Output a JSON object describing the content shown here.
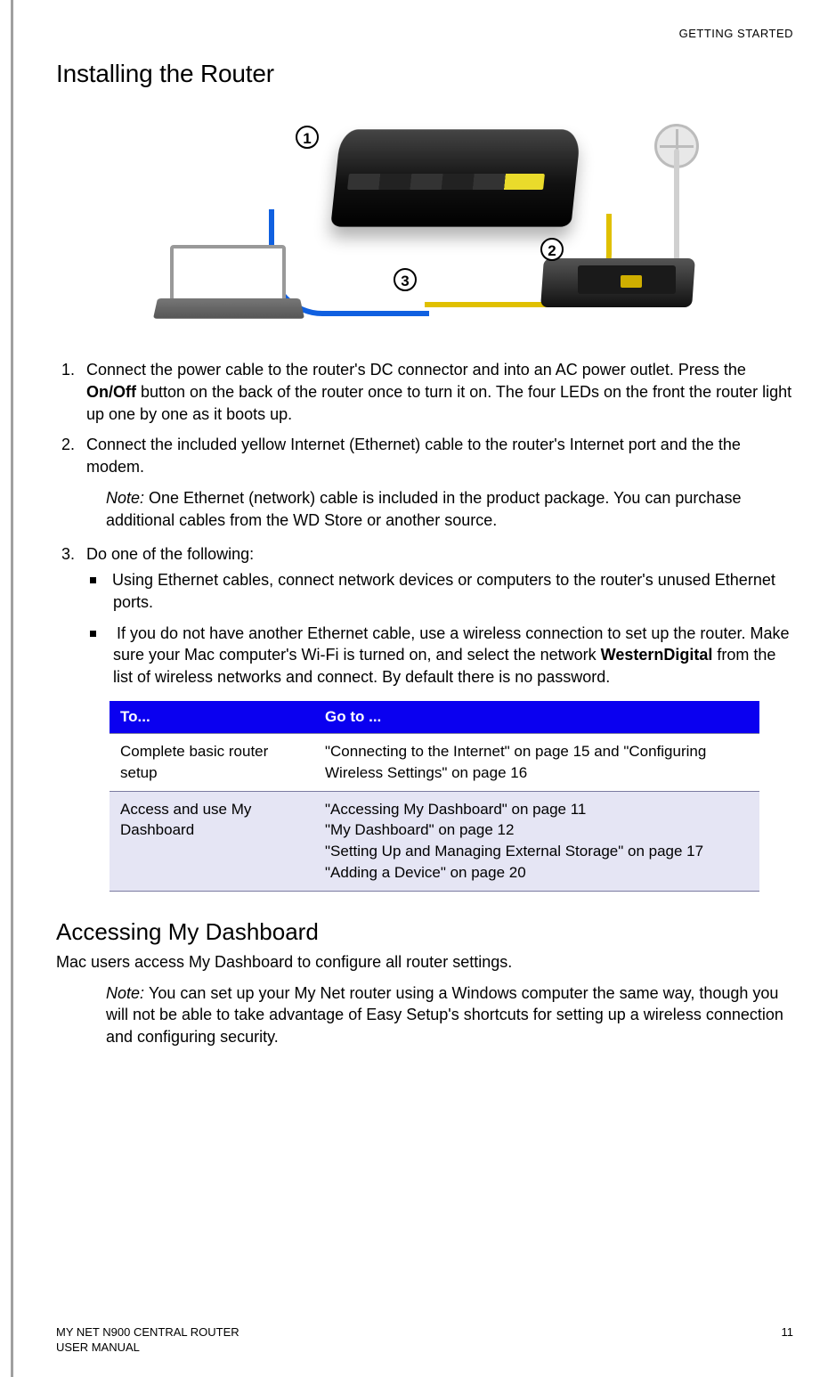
{
  "header": {
    "section": "GETTING STARTED"
  },
  "title": "Installing the Router",
  "diagram": {
    "callouts": [
      "1",
      "2",
      "3"
    ]
  },
  "step1": {
    "pre": "Connect the power cable to the router's DC connector and into an AC power outlet. Press the ",
    "bold": "On/Off",
    "post": " button on the back of the router once to turn it on. The four LEDs on the front the router light up one by one as it boots up."
  },
  "step2": "Connect the included yellow Internet (Ethernet) cable to the router's Internet port and the the modem.",
  "note1": {
    "label": "Note:  ",
    "text": "One Ethernet (network) cable is included in the product package. You can purchase additional cables from the WD Store or another source."
  },
  "step3_intro": "Do one of the following:",
  "step3_b1": "Using Ethernet cables, connect network devices or computers to the router's unused Ethernet ports.",
  "step3_b2": {
    "pre": "If you do not have another Ethernet cable, use a wireless connection to set up the router. Make sure your Mac computer's Wi-Fi is turned on, and select the network ",
    "bold": "WesternDigital",
    "post": " from the list of wireless networks and connect. By default there is no password."
  },
  "table": {
    "header_bg": "#0a00f0",
    "header_fg": "#ffffff",
    "row_shade": "#e5e5f4",
    "col_to": "To...",
    "col_goto": "Go to ...",
    "rows": [
      {
        "to": "Complete basic router setup",
        "goto": "\"Connecting to the Internet\" on page 15 and \"Configuring Wireless Settings\" on page 16"
      },
      {
        "to": "Access and use My Dashboard",
        "goto": "\"Accessing My Dashboard\" on page 11\n\"My Dashboard\" on page 12\n\"Setting Up and Managing External Storage\" on page 17\n\"Adding a Device\" on page 20"
      }
    ]
  },
  "subheading": "Accessing My Dashboard",
  "sub_intro": "Mac users access My Dashboard to configure all router settings.",
  "note2": {
    "label": "Note:  ",
    "text": "You can set up your My Net router using a Windows computer the same way, though you will not be able to take advantage of Easy Setup's shortcuts for setting up a wireless connection and configuring security."
  },
  "footer": {
    "product": "MY NET N900 CENTRAL ROUTER",
    "doc": "USER MANUAL",
    "page": "11"
  }
}
